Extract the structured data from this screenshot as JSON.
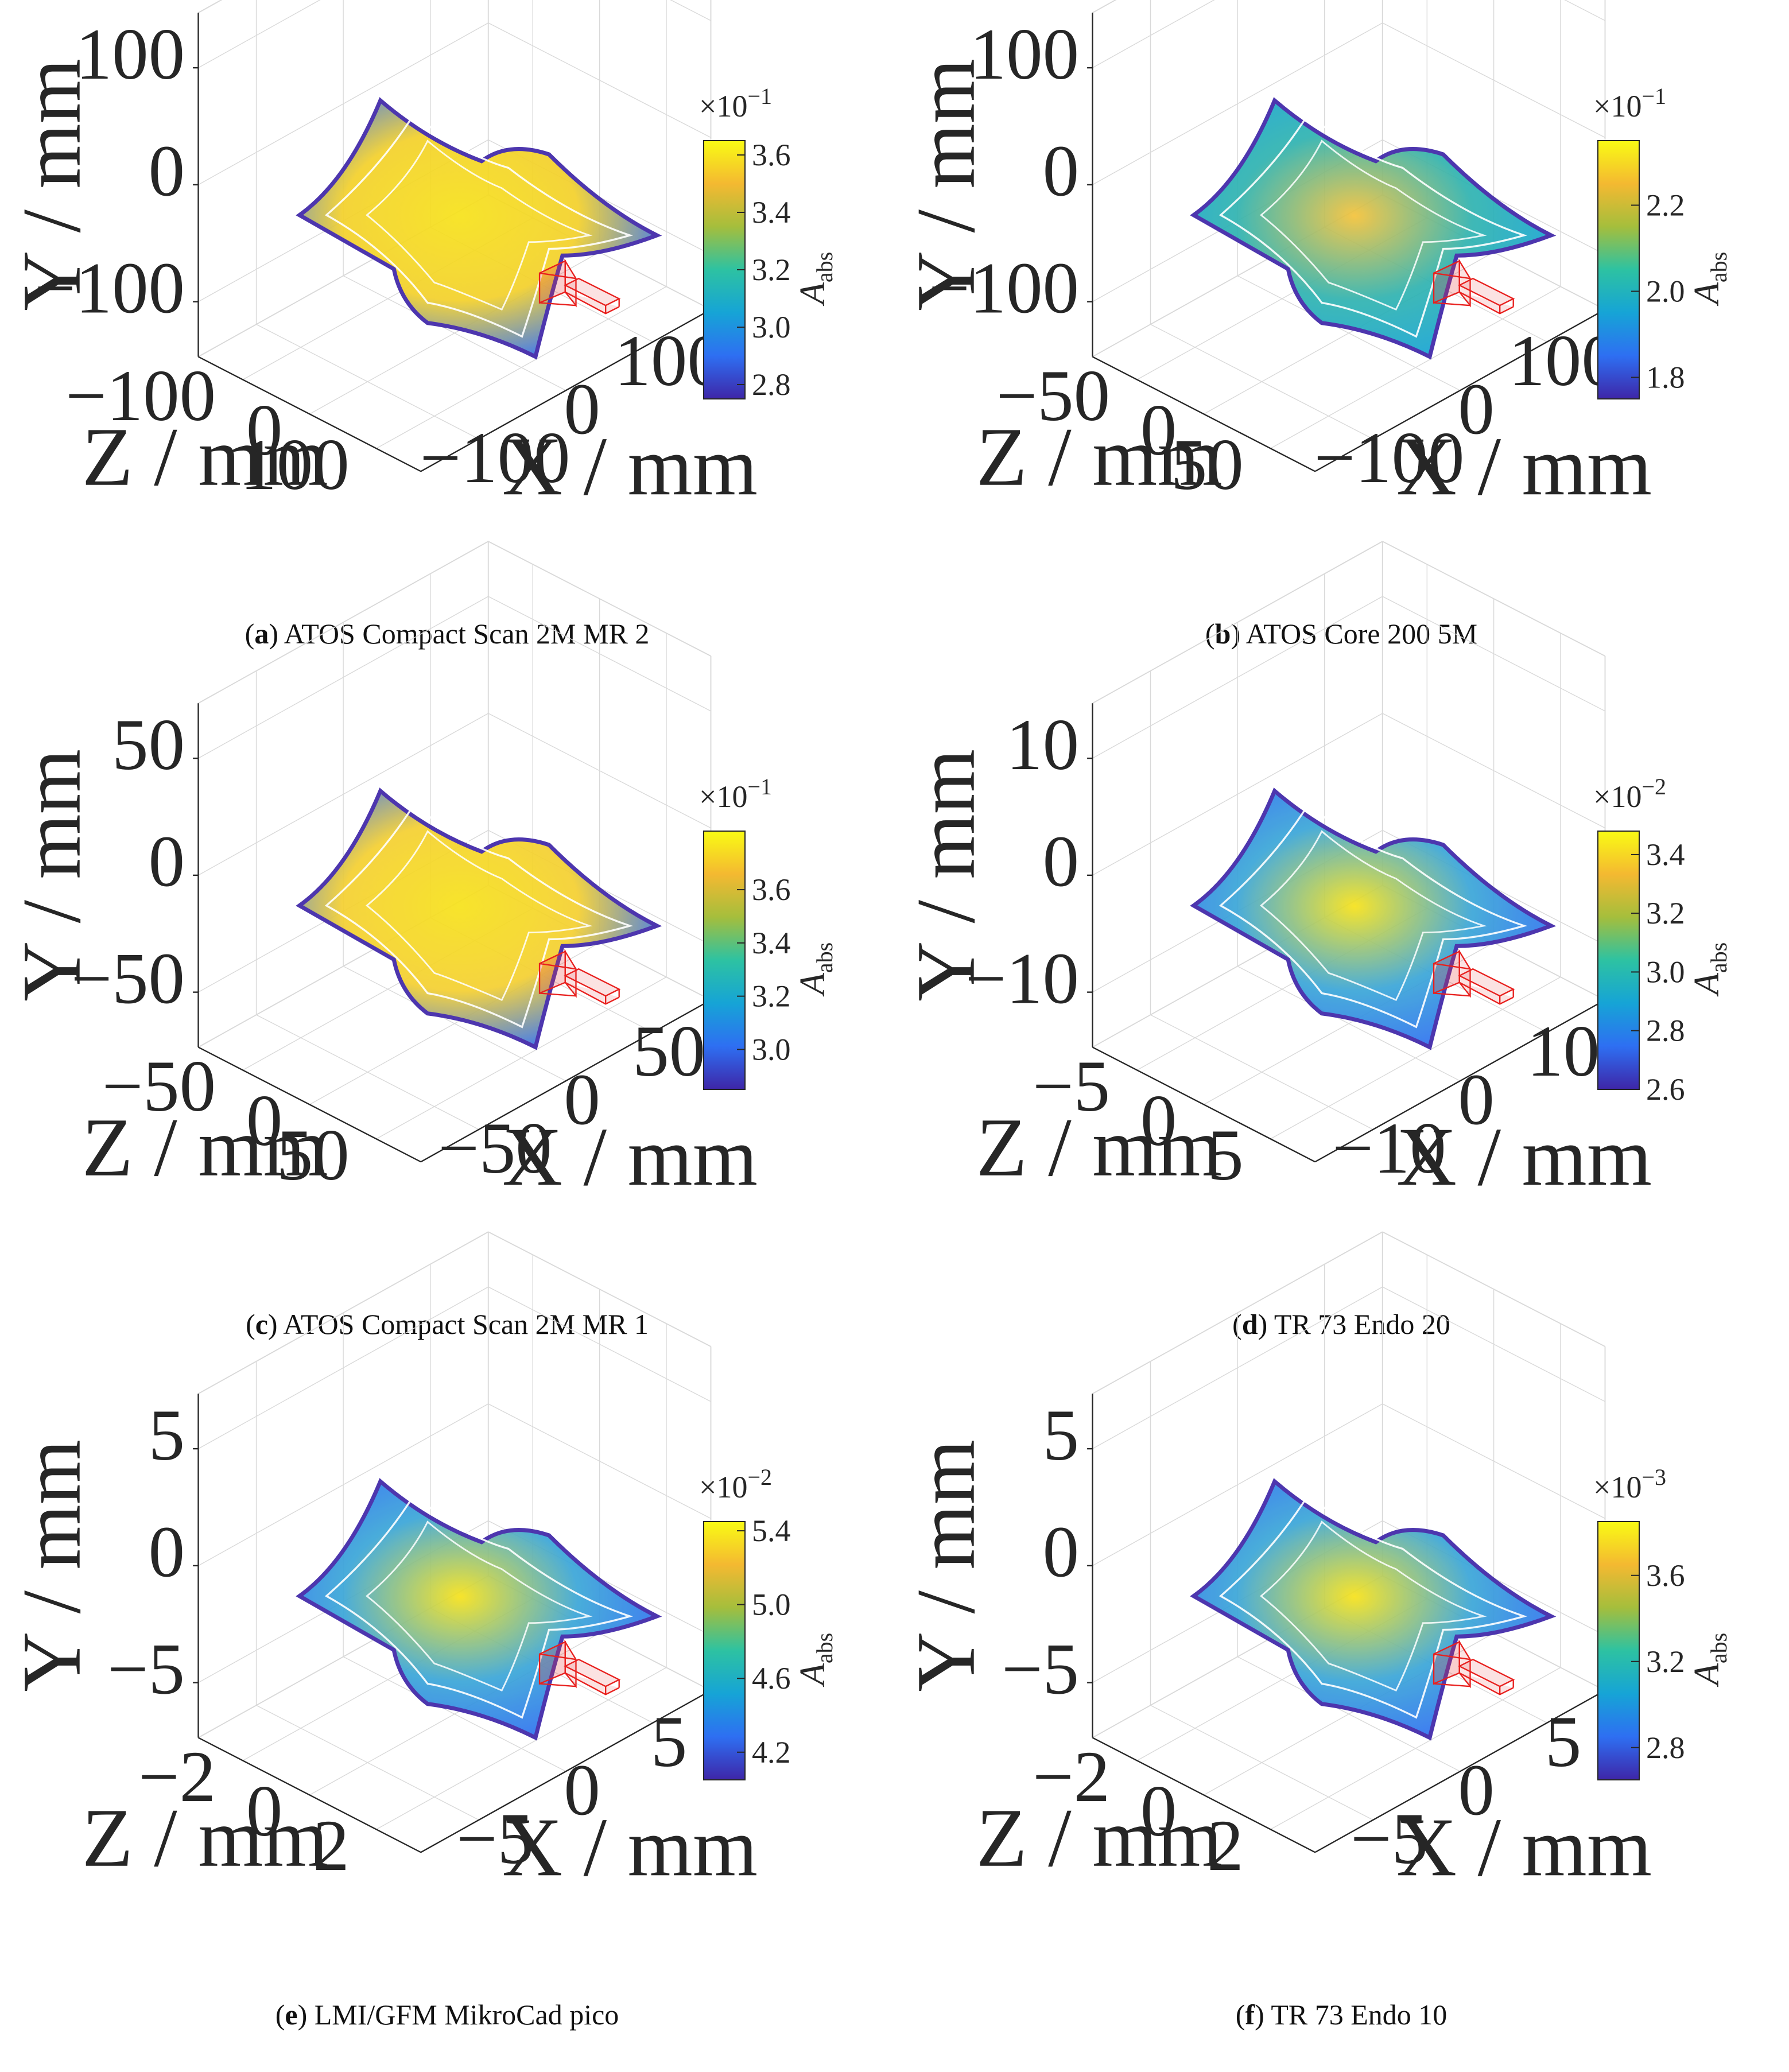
{
  "chart_data": [
    {
      "type": "3d-surface-contour",
      "label": "a",
      "caption": "ATOS Compact Scan 2M MR 2",
      "xlabel": "X / mm",
      "ylabel": "Y / mm",
      "zlabel": "Z / mm",
      "x_ticks": [
        "−100",
        "0",
        "100"
      ],
      "y_ticks": [
        "−100",
        "0",
        "100"
      ],
      "z_ticks": [
        "−100",
        "0",
        "100"
      ],
      "colorbar": {
        "label": "A",
        "label_sub": "abs",
        "multiplier": "×10",
        "exponent": "−1",
        "range": [
          2.75,
          3.65
        ],
        "ticks": [
          "2.8",
          "3.0",
          "3.2",
          "3.4",
          "3.6"
        ]
      },
      "fill": "#f4d12a"
    },
    {
      "type": "3d-surface-contour",
      "label": "b",
      "caption": "ATOS Core 200 5M",
      "xlabel": "X / mm",
      "ylabel": "Y / mm",
      "zlabel": "Z / mm",
      "x_ticks": [
        "−100",
        "0",
        "100"
      ],
      "y_ticks": [
        "−100",
        "0",
        "100"
      ],
      "z_ticks": [
        "−50",
        "0",
        "50"
      ],
      "colorbar": {
        "label": "A",
        "label_sub": "abs",
        "multiplier": "×10",
        "exponent": "−1",
        "range": [
          1.75,
          2.35
        ],
        "ticks": [
          "1.8",
          "2.0",
          "2.2"
        ]
      },
      "fill": "#2fb3b0"
    },
    {
      "type": "3d-surface-contour",
      "label": "c",
      "caption": "ATOS Compact Scan 2M MR 1",
      "xlabel": "X / mm",
      "ylabel": "Y / mm",
      "zlabel": "Z / mm",
      "x_ticks": [
        "−50",
        "0",
        "50"
      ],
      "y_ticks": [
        "−50",
        "0",
        "50"
      ],
      "z_ticks": [
        "−50",
        "0",
        "50"
      ],
      "colorbar": {
        "label": "A",
        "label_sub": "abs",
        "multiplier": "×10",
        "exponent": "−1",
        "range": [
          2.85,
          3.82
        ],
        "ticks": [
          "3.0",
          "3.2",
          "3.4",
          "3.6"
        ]
      },
      "fill": "#f5d030"
    },
    {
      "type": "3d-surface-contour",
      "label": "d",
      "caption": "TR 73 Endo 20",
      "xlabel": "X / mm",
      "ylabel": "Y / mm",
      "zlabel": "Z / mm",
      "x_ticks": [
        "−10",
        "0",
        "10"
      ],
      "y_ticks": [
        "−10",
        "0",
        "10"
      ],
      "z_ticks": [
        "−5",
        "0",
        "5"
      ],
      "colorbar": {
        "label": "A",
        "label_sub": "abs",
        "multiplier": "×10",
        "exponent": "−2",
        "range": [
          2.6,
          3.48
        ],
        "ticks": [
          "2.6",
          "2.8",
          "3.0",
          "3.2",
          "3.4"
        ]
      },
      "fill": "#3aa6d8"
    },
    {
      "type": "3d-surface-contour",
      "label": "e",
      "caption": "LMI/GFM MikroCad pico",
      "xlabel": "X / mm",
      "ylabel": "Y / mm",
      "zlabel": "Z / mm",
      "x_ticks": [
        "−5",
        "0",
        "5"
      ],
      "y_ticks": [
        "−5",
        "0",
        "5"
      ],
      "z_ticks": [
        "−2",
        "0",
        "2"
      ],
      "colorbar": {
        "label": "A",
        "label_sub": "abs",
        "multiplier": "×10",
        "exponent": "−2",
        "range": [
          4.05,
          5.45
        ],
        "ticks": [
          "4.2",
          "4.6",
          "5.0",
          "5.4"
        ]
      },
      "fill": "#3aa6d8"
    },
    {
      "type": "3d-surface-contour",
      "label": "f",
      "caption": "TR 73 Endo 10",
      "xlabel": "X / mm",
      "ylabel": "Y / mm",
      "zlabel": "Z / mm",
      "x_ticks": [
        "−5",
        "0",
        "5"
      ],
      "y_ticks": [
        "−5",
        "0",
        "5"
      ],
      "z_ticks": [
        "−2",
        "0",
        "2"
      ],
      "colorbar": {
        "label": "A",
        "label_sub": "abs",
        "multiplier": "×10",
        "exponent": "−3",
        "range": [
          2.65,
          3.85
        ],
        "ticks": [
          "2.8",
          "3.2",
          "3.6"
        ]
      },
      "fill": "#3aa6d8"
    }
  ]
}
